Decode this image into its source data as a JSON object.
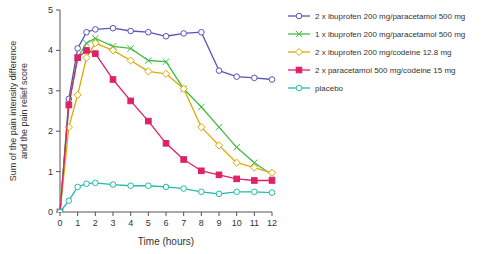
{
  "chart_data": {
    "type": "line",
    "xlabel": "Time (hours)",
    "ylabel": "Sum of the pain intensity difference\nand the pain relief score",
    "x": [
      0,
      0.5,
      1,
      1.5,
      2,
      3,
      4,
      5,
      6,
      7,
      8,
      9,
      10,
      11,
      12
    ],
    "series": [
      {
        "name": "2 x ibuprofen 200 mg/paracetamol 500 mg",
        "color": "#5555bb",
        "marker": "circle",
        "line_style": "solid",
        "values": [
          0,
          2.8,
          4.05,
          4.45,
          4.52,
          4.55,
          4.48,
          4.45,
          4.35,
          4.42,
          4.45,
          3.5,
          3.35,
          3.32,
          3.28
        ]
      },
      {
        "name": "1 x ibuprofen 200 mg/paracetamol 500 mg",
        "color": "#44bb44",
        "marker": "x",
        "line_style": "solid",
        "values": [
          0,
          2.65,
          3.82,
          4.18,
          4.3,
          4.1,
          4.05,
          3.75,
          3.72,
          3.05,
          2.6,
          2.1,
          1.6,
          1.22,
          0.92
        ]
      },
      {
        "name": "2 x ibuprofen 200 mg/codeine 12.8 mg",
        "color": "#ddaa00",
        "marker": "diamond",
        "line_style": "solid",
        "values": [
          0,
          2.1,
          2.9,
          3.82,
          4.18,
          4.0,
          3.75,
          3.48,
          3.42,
          3.05,
          2.1,
          1.65,
          1.22,
          1.1,
          0.97
        ]
      },
      {
        "name": "2 x paracetamol 500 mg/codeine 15 mg",
        "color": "#dd2266",
        "marker": "square",
        "line_style": "solid",
        "values": [
          0,
          2.65,
          3.82,
          4.0,
          3.92,
          3.28,
          2.75,
          2.25,
          1.7,
          1.3,
          1.02,
          0.92,
          0.82,
          0.78,
          0.78
        ]
      },
      {
        "name": "placebo",
        "color": "#22bbaa",
        "marker": "circle",
        "line_style": "solid",
        "values": [
          0,
          0.28,
          0.62,
          0.7,
          0.72,
          0.68,
          0.65,
          0.65,
          0.62,
          0.58,
          0.5,
          0.45,
          0.5,
          0.5,
          0.48
        ]
      }
    ],
    "xlim": [
      0,
      12
    ],
    "ylim": [
      0,
      5
    ],
    "xticks": [
      0,
      1,
      2,
      3,
      4,
      5,
      6,
      7,
      8,
      9,
      10,
      11,
      12
    ],
    "yticks": [
      0,
      1,
      2,
      3,
      4,
      5
    ],
    "grid": false,
    "legend": "right"
  }
}
